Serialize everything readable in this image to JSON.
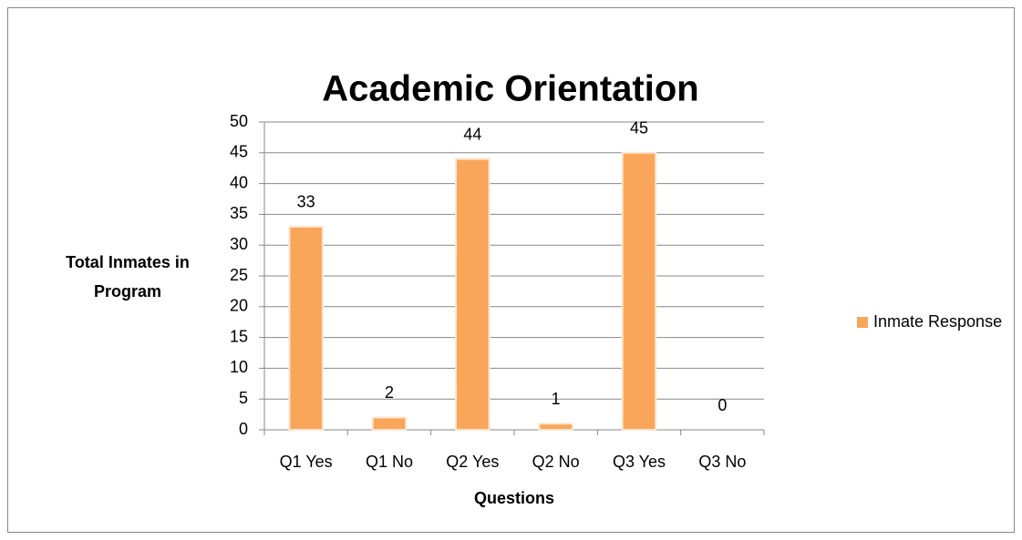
{
  "chart_data": {
    "type": "bar",
    "title": "Academic Orientation",
    "x_label": "Questions",
    "y_label": "Total Inmates in Program",
    "categories": [
      "Q1 Yes",
      "Q1 No",
      "Q2 Yes",
      "Q2 No",
      "Q3 Yes",
      "Q3 No"
    ],
    "series": [
      {
        "name": "Inmate Response",
        "color": "#f9a65a",
        "values": [
          33,
          2,
          44,
          1,
          45,
          0
        ]
      }
    ],
    "ylim": [
      0,
      50
    ],
    "yticks": [
      0,
      5,
      10,
      15,
      20,
      25,
      30,
      35,
      40,
      45,
      50
    ],
    "grid": true,
    "legend": "right"
  }
}
